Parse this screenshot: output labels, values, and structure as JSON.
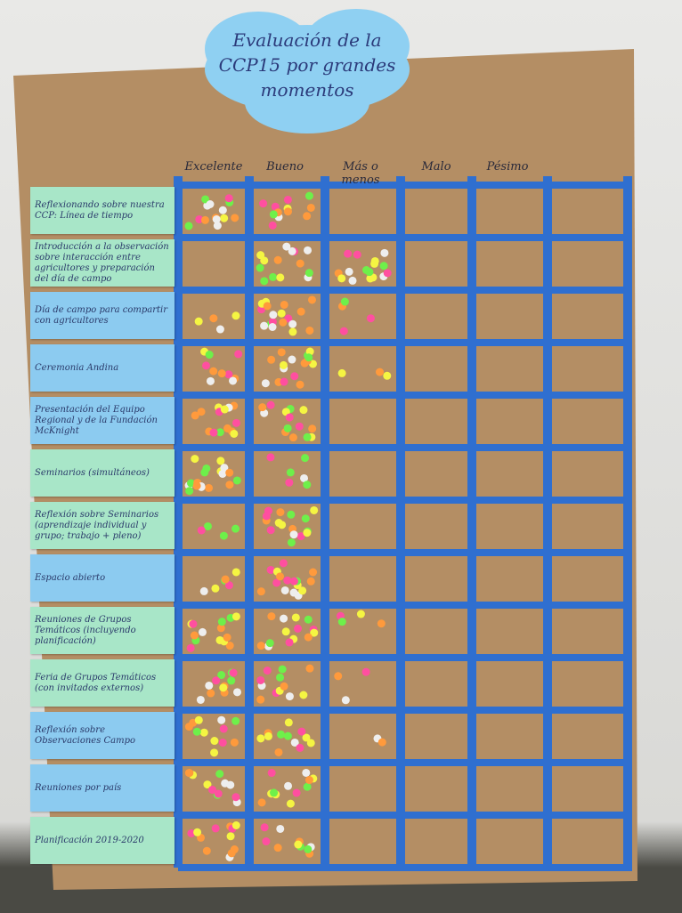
{
  "poster": {
    "title": [
      "Evaluación de la",
      "CCP15 por grandes",
      "momentos"
    ],
    "columns": [
      "Excelente",
      "Bueno",
      "Más o menos",
      "Malo",
      "Pésimo"
    ],
    "rows": [
      {
        "label": "Reflexionando sobre nuestra CCP: Línea de tiempo",
        "color": "#a8e6c8"
      },
      {
        "label": "Introducción a la observación sobre interacción entre agricultores y preparación del día de campo",
        "color": "#a8e6c8"
      },
      {
        "label": "Día de campo para compartir con agricultores",
        "color": "#8ccbf0"
      },
      {
        "label": "Ceremonia Andina",
        "color": "#8ccbf0"
      },
      {
        "label": "Presentación del Equipo Regional y de la Fundación McKnight",
        "color": "#8ccbf0"
      },
      {
        "label": "Seminarios (simultáneos)",
        "color": "#a8e6c8"
      },
      {
        "label": "Reflexión sobre Seminarios (aprendizaje individual y grupo; trabajo + pleno)",
        "color": "#a8e6c8"
      },
      {
        "label": "Espacio abierto",
        "color": "#8ccbf0"
      },
      {
        "label": "Reuniones de Grupos Temáticos (incluyendo planificación)",
        "color": "#a8e6c8"
      },
      {
        "label": "Feria de Grupos Temáticos (con invitados externos)",
        "color": "#a8e6c8"
      },
      {
        "label": "Reflexión sobre Observaciones Campo",
        "color": "#8ccbf0"
      },
      {
        "label": "Reuniones por país",
        "color": "#8ccbf0"
      },
      {
        "label": "Planificación 2019-2020",
        "color": "#a8e6c8"
      }
    ]
  }
}
